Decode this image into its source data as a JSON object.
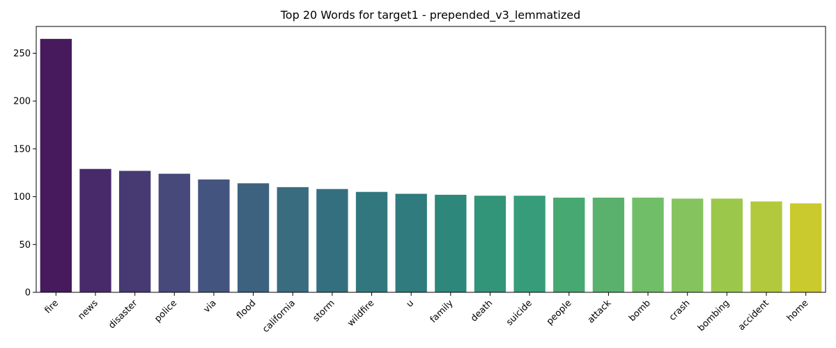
{
  "chart_data": {
    "type": "bar",
    "title": "Top 20 Words for target1 - prepended_v3_lemmatized",
    "xlabel": "",
    "ylabel": "",
    "categories": [
      "fire",
      "news",
      "disaster",
      "police",
      "via",
      "flood",
      "california",
      "storm",
      "wildfire",
      "u",
      "family",
      "death",
      "suicide",
      "people",
      "attack",
      "bomb",
      "crash",
      "bombing",
      "accident",
      "home"
    ],
    "values": [
      265,
      129,
      127,
      124,
      118,
      114,
      110,
      108,
      105,
      103,
      102,
      101,
      101,
      99,
      99,
      99,
      98,
      98,
      95,
      93
    ],
    "ylim": [
      0,
      278
    ],
    "yticks": [
      0,
      50,
      100,
      150,
      200,
      250
    ],
    "colors": [
      "#461a5c",
      "#482a6b",
      "#473a73",
      "#46497a",
      "#43557f",
      "#3c6280",
      "#3a6c80",
      "#346f7f",
      "#33777e",
      "#2f7b7d",
      "#2d877b",
      "#329478",
      "#379c79",
      "#48a871",
      "#59b16d",
      "#70be68",
      "#85c35e",
      "#9bc84b",
      "#b2c93d",
      "#cac92e"
    ],
    "grid": false,
    "legend": "none"
  }
}
